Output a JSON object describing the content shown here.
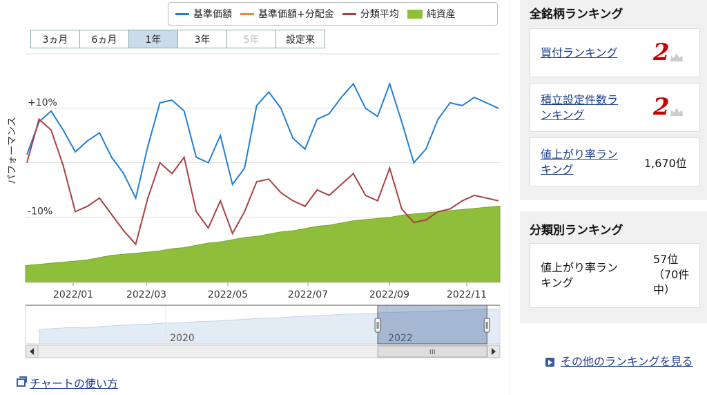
{
  "legend": [
    {
      "label": "基準価額",
      "color": "#1f7ed6",
      "type": "line"
    },
    {
      "label": "基準価額+分配金",
      "color": "#f08a1c",
      "type": "line"
    },
    {
      "label": "分類平均",
      "color": "#a84040",
      "type": "line"
    },
    {
      "label": "純資産",
      "color": "#8fbf3a",
      "type": "area"
    }
  ],
  "range_buttons": [
    {
      "label": "3ヵ月",
      "state": "normal"
    },
    {
      "label": "6ヵ月",
      "state": "normal"
    },
    {
      "label": "1年",
      "state": "active"
    },
    {
      "label": "3年",
      "state": "normal"
    },
    {
      "label": "5年",
      "state": "disabled"
    },
    {
      "label": "設定来",
      "state": "normal"
    }
  ],
  "chart_data": {
    "type": "line",
    "ylabel": "パフォーマンス",
    "y_ticks": [
      {
        "label": "+10%",
        "value": 10
      },
      {
        "label": "-10%",
        "value": -10
      }
    ],
    "ylim": [
      -22,
      20
    ],
    "x_tick_labels": [
      "2022/01",
      "2022/03",
      "2022/05",
      "2022/07",
      "2022/09",
      "2022/11"
    ],
    "grid": true,
    "series": [
      {
        "name": "基準価額",
        "color": "#1f7ed6",
        "values": [
          1.5,
          7.5,
          9.5,
          6,
          2,
          4,
          5.5,
          1,
          -2,
          -6.5,
          3,
          11,
          11.5,
          9.5,
          1,
          0,
          5,
          -4,
          -1,
          10.5,
          13,
          10,
          4.5,
          2.5,
          8,
          9,
          12,
          14.5,
          10,
          8.5,
          14.5,
          7.5,
          0,
          2.5,
          8,
          11,
          10.5,
          12,
          11,
          10
        ]
      },
      {
        "name": "分類平均",
        "color": "#a84040",
        "values": [
          0,
          8,
          6,
          -0.5,
          -9,
          -8,
          -6.5,
          -9.5,
          -12.5,
          -15,
          -6.5,
          0,
          -2,
          1,
          -9,
          -12,
          -7,
          -13,
          -9,
          -3.5,
          -3,
          -5.5,
          -7,
          -8,
          -5,
          -6,
          -4,
          -2,
          -6,
          -7,
          -1,
          -8.5,
          -11,
          -10.5,
          -9,
          -8.5,
          -7,
          -6,
          -6.5,
          -7
        ]
      }
    ],
    "net_assets": {
      "name": "純資産",
      "color": "#8fbf3a",
      "values": [
        15,
        16,
        17,
        18,
        19,
        20,
        22,
        24,
        25,
        26,
        27,
        28,
        30,
        31,
        33,
        35,
        36,
        38,
        40,
        41,
        43,
        45,
        46,
        48,
        50,
        51,
        53,
        55,
        56,
        57,
        58,
        60,
        61,
        62,
        63,
        64,
        65,
        66,
        67,
        68
      ]
    },
    "navigator": {
      "labels": [
        "2020",
        "2022"
      ],
      "values": [
        30,
        32,
        34,
        33,
        36,
        38,
        40,
        41,
        43,
        44,
        46,
        47,
        49,
        51,
        53,
        54,
        56,
        58,
        59,
        61,
        62,
        63,
        65,
        66,
        67,
        68,
        69,
        70,
        71,
        72
      ],
      "selection": [
        0.76,
        0.98
      ],
      "scroll_grip": "III"
    }
  },
  "help_link": "チャートの使い方",
  "panel_all": {
    "title": "全銘柄ランキング",
    "items": [
      {
        "label": "買付ランキング",
        "big": "2"
      },
      {
        "label": "積立設定件数ランキング",
        "big": "2"
      },
      {
        "label": "値上がり率ランキング",
        "value": "1,670位"
      }
    ]
  },
  "panel_class": {
    "title": "分類別ランキング",
    "item_label": "値上がり率ランキング",
    "value_lines": [
      "57位",
      "（70件",
      "中）"
    ]
  },
  "more_link": "その他のランキングを見る"
}
